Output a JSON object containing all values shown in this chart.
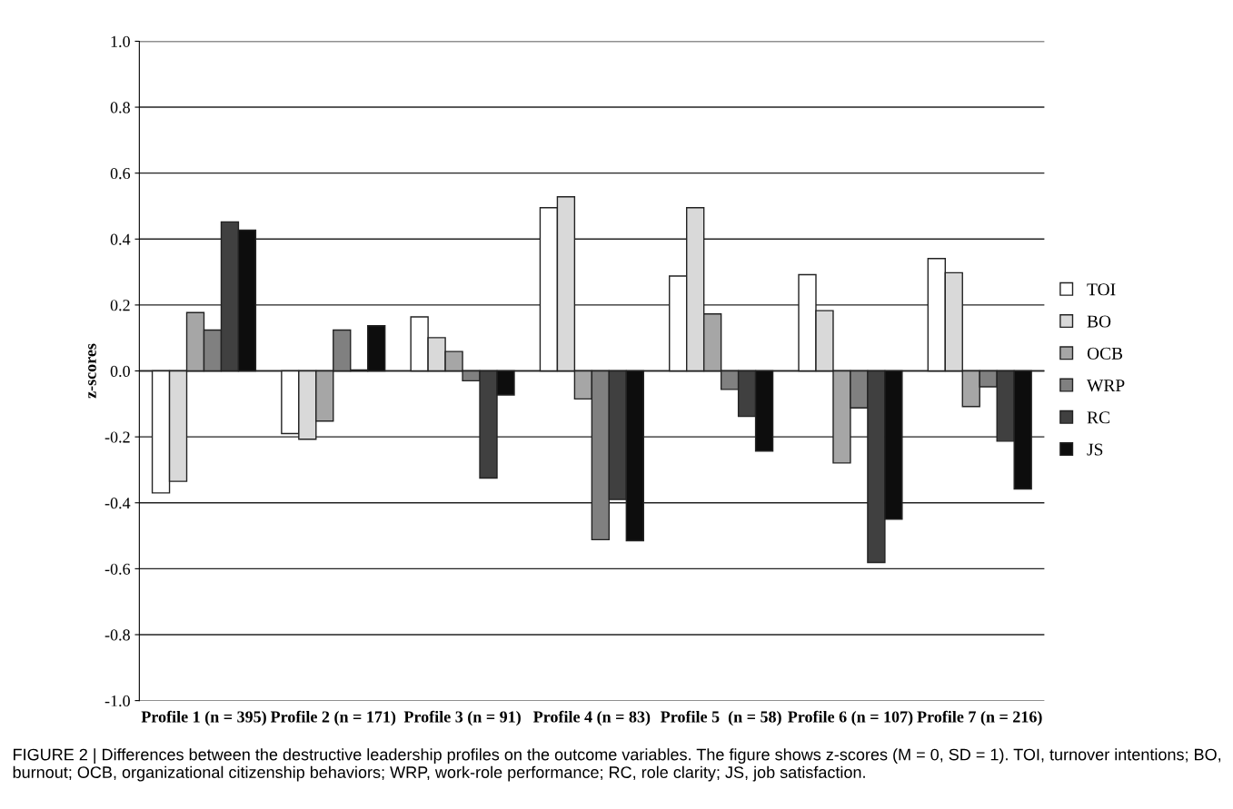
{
  "chart_data": {
    "type": "bar",
    "ylabel": "z-scores",
    "categories": [
      "Profile 1 (n = 395)",
      "Profile 2 (n = 171)",
      "Profile 3 (n = 91)",
      "Profile 4 (n = 83)",
      "Profile 5  (n = 58)",
      "Profile 6 (n = 107)",
      "Profile 7 (n = 216)"
    ],
    "series": [
      {
        "name": "TOI",
        "color": "#ffffff",
        "values": [
          -0.37,
          -0.19,
          0.164,
          0.495,
          0.288,
          0.292,
          0.341
        ]
      },
      {
        "name": "BO",
        "color": "#d9d9d9",
        "values": [
          -0.335,
          -0.207,
          0.101,
          0.528,
          0.495,
          0.183,
          0.298
        ]
      },
      {
        "name": "OCB",
        "color": "#a6a6a6",
        "values": [
          0.177,
          -0.152,
          0.059,
          -0.085,
          0.173,
          -0.279,
          -0.108
        ]
      },
      {
        "name": "WRP",
        "color": "#808080",
        "values": [
          0.124,
          0.124,
          -0.03,
          -0.512,
          -0.056,
          -0.112,
          -0.048
        ]
      },
      {
        "name": "RC",
        "color": "#404040",
        "values": [
          0.452,
          0.003,
          -0.325,
          -0.39,
          -0.138,
          -0.581,
          -0.213
        ]
      },
      {
        "name": "JS",
        "color": "#0d0d0d",
        "values": [
          0.427,
          0.137,
          -0.073,
          -0.515,
          -0.243,
          -0.45,
          -0.358
        ]
      }
    ],
    "ylim": [
      -1.0,
      1.0
    ],
    "yticks": [
      {
        "value": -1.0,
        "label": "-1.0"
      },
      {
        "value": -0.8,
        "label": "-0.8"
      },
      {
        "value": -0.6,
        "label": "-0.6"
      },
      {
        "value": -0.4,
        "label": "-0.4"
      },
      {
        "value": -0.2,
        "label": "-0.2"
      },
      {
        "value": 0.0,
        "label": "0.0"
      },
      {
        "value": 0.2,
        "label": "0.2"
      },
      {
        "value": 0.4,
        "label": "0.4"
      },
      {
        "value": 0.6,
        "label": "0.6"
      },
      {
        "value": 0.8,
        "label": "0.8"
      },
      {
        "value": 1.0,
        "label": "1.0"
      }
    ],
    "grid": "y",
    "legend": "right",
    "annotations": [
      "FIGURE 2 | Differences between the destructive leadership profiles on the outcome variables. The figure shows z-scores (M = 0, SD = 1). TOI, turnover intentions; BO, burnout; OCB, organizational citizenship behaviors; WRP, work-role performance; RC, role clarity; JS, job satisfaction."
    ]
  }
}
